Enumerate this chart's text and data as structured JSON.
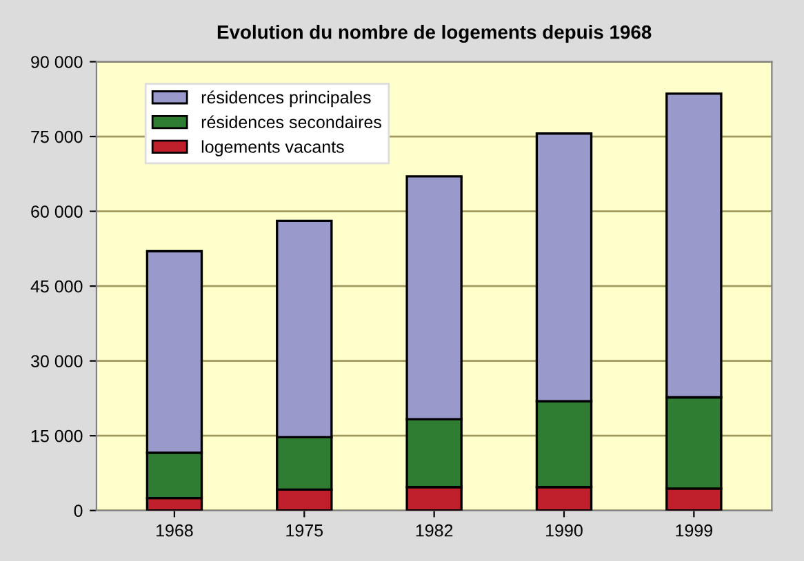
{
  "chart_data": {
    "type": "bar",
    "stacked": true,
    "title": "Evolution du nombre de logements depuis 1968",
    "categories": [
      "1968",
      "1975",
      "1982",
      "1990",
      "1999"
    ],
    "series": [
      {
        "name": "logements vacants",
        "color": "#c0202c",
        "values": [
          2500,
          4200,
          4700,
          4700,
          4400
        ]
      },
      {
        "name": "résidences secondaires",
        "color": "#2e7d32",
        "values": [
          9100,
          10500,
          13600,
          17200,
          18300
        ]
      },
      {
        "name": "résidences principales",
        "color": "#9999cc",
        "values": [
          40400,
          43400,
          48700,
          53700,
          60900
        ]
      }
    ],
    "ylim": [
      0,
      90000
    ],
    "yticks": [
      0,
      {
        "value": 15000,
        "label": "15 000"
      },
      {
        "value": 30000,
        "label": "30 000"
      },
      {
        "value": 45000,
        "label": "45 000"
      },
      {
        "value": 60000,
        "label": "60 000"
      },
      {
        "value": 75000,
        "label": "75 000"
      },
      {
        "value": 90000,
        "label": "90 000"
      }
    ],
    "grid": "y",
    "legend": "top left"
  }
}
